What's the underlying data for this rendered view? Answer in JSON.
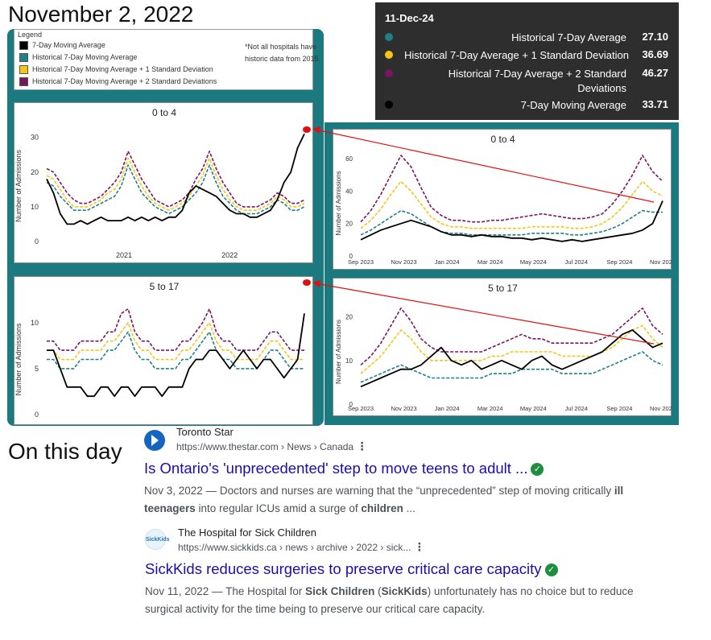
{
  "header": {
    "title": "November 2, 2022",
    "subtitle": "On this day"
  },
  "legend": {
    "title": "Legend",
    "items": [
      {
        "label": "7-Day Moving Average",
        "color": "#000000"
      },
      {
        "label": "Historical 7-Day Moving Average",
        "color": "#1f7f8a"
      },
      {
        "label": "Historical 7-Day Moving Average + 1 Standard Deviation",
        "color": "#f5c518"
      },
      {
        "label": "Historical 7-Day Moving Average + 2 Standard Deviations",
        "color": "#7a1560"
      }
    ],
    "note": "*Not all hospitals have historic data from 2015."
  },
  "tooltip": {
    "date": "11-Dec-24",
    "rows": [
      {
        "label": "Historical 7-Day Average",
        "value": "27.10",
        "color": "#1f7f8a"
      },
      {
        "label": "Historical 7-Day Average + 1 Standard Deviation",
        "value": "36.69",
        "color": "#f5c518"
      },
      {
        "label": "Historical 7-Day Average + 2 Standard Deviations",
        "value": "46.27",
        "color": "#7a1560"
      },
      {
        "label": "7-Day Moving Average",
        "value": "33.71",
        "color": "#000000"
      }
    ]
  },
  "chart_data": [
    {
      "id": "left-0to4",
      "type": "line",
      "title": "0 to 4",
      "ylabel": "Number of Admissions",
      "xticks": [
        "2021",
        "2022"
      ],
      "yticks": [
        0,
        10,
        20,
        30
      ],
      "ylim": [
        0,
        32
      ],
      "series": [
        {
          "name": "7-Day Moving Average",
          "color": "#000000",
          "style": "solid",
          "values": [
            18,
            14,
            8,
            5,
            5,
            6,
            5,
            6,
            7,
            6,
            6,
            6,
            7,
            6,
            7,
            6,
            7,
            6,
            7,
            7,
            9,
            14,
            16,
            15,
            14,
            13,
            11,
            9,
            8,
            8,
            7,
            7,
            8,
            9,
            12,
            17,
            20,
            27,
            31
          ]
        },
        {
          "name": "Historical 7-Day Moving Average",
          "color": "#1f7f8a",
          "style": "dashed",
          "values": [
            17,
            16,
            13,
            11,
            9,
            9,
            9,
            10,
            11,
            12,
            13,
            16,
            22,
            18,
            14,
            12,
            10,
            9,
            8,
            9,
            10,
            12,
            14,
            17,
            22,
            17,
            13,
            11,
            9,
            8,
            8,
            8,
            9,
            10,
            12,
            11,
            9,
            9,
            10
          ]
        },
        {
          "name": "Historical 7-Day Moving Average + 1 Standard Deviation",
          "color": "#f5c518",
          "style": "dashed",
          "values": [
            19,
            18,
            15,
            12,
            10,
            10,
            10,
            11,
            12,
            14,
            15,
            18,
            24,
            20,
            16,
            13,
            11,
            10,
            9,
            10,
            11,
            13,
            16,
            19,
            24,
            19,
            15,
            12,
            10,
            9,
            9,
            9,
            10,
            11,
            13,
            12,
            10,
            10,
            11
          ]
        },
        {
          "name": "Historical 7-Day Moving Average + 2 Standard Deviations",
          "color": "#7a1560",
          "style": "dashed",
          "values": [
            21,
            20,
            17,
            14,
            12,
            11,
            11,
            12,
            13,
            15,
            17,
            20,
            26,
            22,
            18,
            15,
            12,
            11,
            10,
            11,
            12,
            14,
            18,
            21,
            26,
            21,
            17,
            14,
            11,
            10,
            10,
            10,
            11,
            12,
            14,
            13,
            11,
            11,
            12
          ]
        }
      ]
    },
    {
      "id": "left-5to17",
      "type": "line",
      "title": "5 to 17",
      "ylabel": "Number of Admissions",
      "xticks": [],
      "yticks": [
        0,
        5,
        10
      ],
      "ylim": [
        0,
        12
      ],
      "series": [
        {
          "name": "7-Day Moving Average",
          "color": "#000000",
          "style": "solid",
          "values": [
            7,
            7,
            5,
            3,
            3,
            3,
            2,
            2,
            3,
            3,
            2,
            3,
            3,
            2,
            3,
            3,
            3,
            2,
            3,
            3,
            3,
            5,
            6,
            6,
            7,
            7,
            6,
            5,
            6,
            7,
            6,
            5,
            6,
            6,
            5,
            4,
            5,
            6,
            11
          ]
        },
        {
          "name": "Historical 7-Day Moving Average",
          "color": "#1f7f8a",
          "style": "dashed",
          "values": [
            6,
            6,
            5,
            5,
            5,
            6,
            6,
            6,
            6,
            7,
            7,
            8,
            9,
            7,
            6,
            6,
            5,
            5,
            5,
            5,
            6,
            6,
            7,
            8,
            9,
            7,
            6,
            6,
            5,
            5,
            5,
            5,
            6,
            7,
            7,
            6,
            5,
            5,
            5
          ]
        },
        {
          "name": "Historical 7-Day Moving Average + 1 Standard Deviation",
          "color": "#f5c518",
          "style": "dashed",
          "values": [
            7,
            7,
            6,
            6,
            6,
            7,
            7,
            7,
            7,
            8,
            8,
            9,
            10,
            8,
            7,
            7,
            6,
            6,
            6,
            6,
            7,
            7,
            8,
            9,
            10,
            8,
            7,
            7,
            6,
            6,
            6,
            6,
            7,
            8,
            8,
            7,
            6,
            6,
            6
          ]
        },
        {
          "name": "Historical 7-Day Moving Average + 2 Standard Deviations",
          "color": "#7a1560",
          "style": "dashed",
          "values": [
            8,
            8,
            7,
            7,
            7,
            8,
            8,
            8,
            8,
            9,
            9,
            11,
            11.5,
            9,
            8,
            8,
            7,
            7,
            7,
            7,
            8,
            8,
            9,
            10,
            11.5,
            9,
            8,
            8,
            7,
            7,
            7,
            7,
            8,
            9,
            9,
            8,
            7,
            7,
            7
          ]
        }
      ]
    },
    {
      "id": "right-0to4",
      "type": "line",
      "title": "0 to 4",
      "ylabel": "Number of Admissions",
      "xticks": [
        "Sep 2023",
        "Nov 2023",
        "Jan 2024",
        "Mar 2024",
        "May 2024",
        "Jul 2024",
        "Sep 2024",
        "Nov 2024"
      ],
      "yticks": [
        0,
        20,
        40,
        60
      ],
      "ylim": [
        0,
        65
      ],
      "series": [
        {
          "name": "7-Day Moving Average",
          "color": "#000000",
          "style": "solid",
          "values": [
            10,
            13,
            16,
            18,
            20,
            22,
            20,
            18,
            15,
            13,
            13,
            12,
            13,
            12,
            12,
            11,
            11,
            10,
            11,
            10,
            9,
            10,
            9,
            10,
            11,
            12,
            13,
            14,
            16,
            20,
            34
          ]
        },
        {
          "name": "Historical 7-Day Average",
          "color": "#1f7f8a",
          "style": "dashed",
          "values": [
            13,
            16,
            20,
            24,
            28,
            26,
            22,
            18,
            15,
            14,
            14,
            13,
            13,
            13,
            13,
            13,
            13,
            14,
            14,
            14,
            14,
            13,
            13,
            14,
            15,
            17,
            20,
            24,
            28,
            27,
            27
          ]
        },
        {
          "name": "Historical 7-Day Average + 1 Standard Deviation",
          "color": "#f5c518",
          "style": "dashed",
          "values": [
            17,
            22,
            29,
            38,
            46,
            40,
            32,
            24,
            20,
            18,
            18,
            17,
            17,
            17,
            17,
            17,
            17,
            18,
            18,
            18,
            18,
            17,
            17,
            18,
            20,
            24,
            30,
            38,
            46,
            40,
            37
          ]
        },
        {
          "name": "Historical 7-Day Average + 2 Standard Deviations",
          "color": "#7a1560",
          "style": "dashed",
          "values": [
            21,
            28,
            38,
            50,
            62,
            55,
            42,
            30,
            25,
            22,
            22,
            21,
            21,
            22,
            22,
            23,
            24,
            25,
            26,
            25,
            24,
            23,
            23,
            24,
            26,
            32,
            40,
            50,
            62,
            52,
            46
          ]
        }
      ]
    },
    {
      "id": "right-5to17",
      "type": "line",
      "title": "5 to 17",
      "ylabel": "Number of Admissions",
      "xticks": [
        "Sep 2023",
        "Nov 2023",
        "Jan 2024",
        "Mar 2024",
        "May 2024",
        "Jul 2024",
        "Sep 2024",
        "Nov 2024"
      ],
      "yticks": [
        0,
        10,
        20
      ],
      "ylim": [
        0,
        24
      ],
      "series": [
        {
          "name": "7-Day Moving Average",
          "color": "#000000",
          "style": "solid",
          "values": [
            4,
            5,
            6,
            7,
            8,
            8,
            9,
            11,
            13,
            10,
            9,
            10,
            8,
            9,
            10,
            9,
            8,
            10,
            11,
            9,
            8,
            9,
            10,
            11,
            12,
            14,
            16,
            17,
            15,
            13,
            14
          ]
        },
        {
          "name": "Historical 7-Day Average",
          "color": "#1f7f8a",
          "style": "dashed",
          "values": [
            5,
            6,
            7,
            8,
            9,
            8,
            7,
            6,
            6,
            6,
            6,
            6,
            6,
            7,
            7,
            7,
            8,
            8,
            8,
            8,
            7,
            7,
            7,
            7,
            8,
            9,
            10,
            11,
            12,
            10,
            9
          ]
        },
        {
          "name": "Historical 7-Day Average + 1 Standard Deviation",
          "color": "#f5c518",
          "style": "dashed",
          "values": [
            7,
            9,
            11,
            14,
            17,
            15,
            12,
            10,
            10,
            10,
            10,
            10,
            10,
            11,
            11,
            12,
            12,
            12,
            12,
            12,
            11,
            11,
            11,
            11,
            12,
            13,
            15,
            17,
            18,
            15,
            13
          ]
        },
        {
          "name": "Historical 7-Day Average + 2 Standard Deviations",
          "color": "#7a1560",
          "style": "dashed",
          "values": [
            9,
            11,
            14,
            18,
            22,
            19,
            15,
            13,
            12,
            12,
            12,
            12,
            12,
            13,
            14,
            15,
            16,
            15,
            15,
            14,
            14,
            14,
            14,
            14,
            15,
            16,
            18,
            20,
            22,
            18,
            16
          ]
        }
      ]
    }
  ],
  "results": [
    {
      "source": "Toronto Star",
      "url": "https://www.thestar.com",
      "breadcrumb": " › News › Canada",
      "title": "Is Ontario's 'unprecedented' step to move teens to adult ...",
      "date": "Nov 3, 2022",
      "snippet_pre": " — Doctors and nurses are warning that the “unprecedented” step of moving critically ",
      "snippet_b1": "ill teenagers",
      "snippet_mid": " into regular ICUs amid a surge of ",
      "snippet_b2": "children",
      "snippet_post": " ...",
      "icon_color": "#1565c0"
    },
    {
      "source": "The Hospital for Sick Children",
      "url": "https://www.sickkids.ca",
      "breadcrumb": " › news › archive › 2022 › sick...",
      "title": "SickKids reduces surgeries to preserve critical care capacity",
      "date": "Nov 11, 2022",
      "snippet_pre": " — The Hospital for ",
      "snippet_b1": "Sick Children",
      "snippet_mid": " (",
      "snippet_b2": "SickKids",
      "snippet_post": ") unfortunately has no choice but to reduce surgical activity for the time being to preserve our critical care capacity.",
      "icon_text": "SickKids",
      "icon_color": "#e8f4fb"
    }
  ]
}
